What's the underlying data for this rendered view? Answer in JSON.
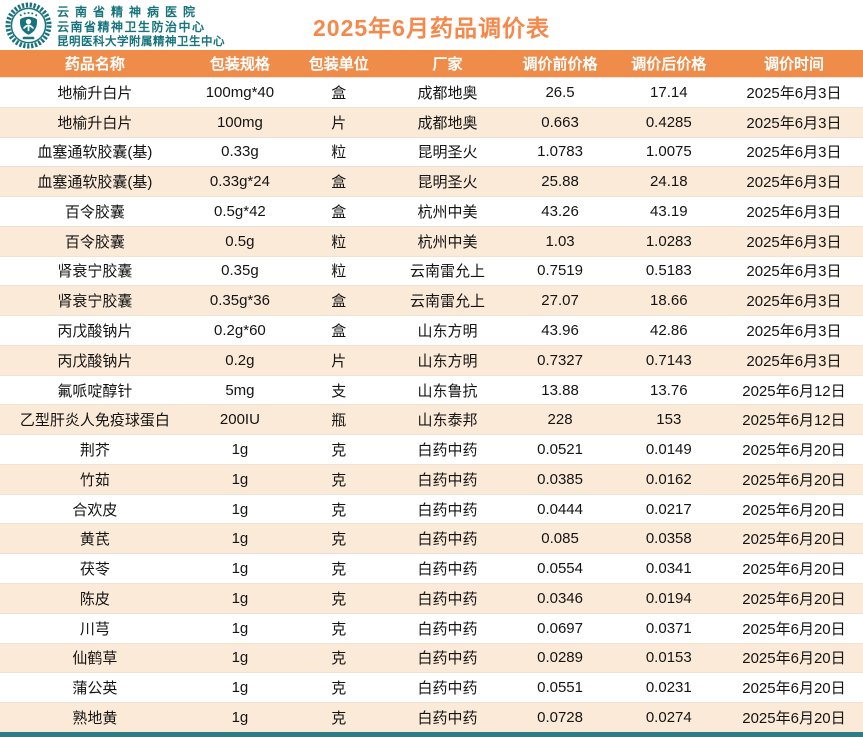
{
  "page": {
    "title": "2025年6月药品调价表"
  },
  "header": {
    "logo_icon": "hospital-emblem-icon",
    "org_lines": [
      "云南省精神病医院",
      "云南省精神卫生防治中心",
      "昆明医科大学附属精神卫生中心"
    ]
  },
  "colors": {
    "header_bar_orange": "#ef8c4a",
    "title_orange": "#f5884a",
    "org_teal": "#17747e",
    "row_alt_peach": "#fcead9",
    "row_border": "#f0e2d4",
    "footer_teal": "#2e7d86",
    "cell_text": "#141414"
  },
  "table": {
    "columns": [
      "药品名称",
      "包装规格",
      "包装单位",
      "厂家",
      "调价前价格",
      "调价后价格",
      "调价时间"
    ],
    "column_keys": [
      "drug-name",
      "pack-spec",
      "pack-unit",
      "manufacturer",
      "price-before",
      "price-after",
      "adjust-date"
    ],
    "rows": [
      [
        "地榆升白片",
        "100mg*40",
        "盒",
        "成都地奥",
        "26.5",
        "17.14",
        "2025年6月3日"
      ],
      [
        "地榆升白片",
        "100mg",
        "片",
        "成都地奥",
        "0.663",
        "0.4285",
        "2025年6月3日"
      ],
      [
        "血塞通软胶囊(基)",
        "0.33g",
        "粒",
        "昆明圣火",
        "1.0783",
        "1.0075",
        "2025年6月3日"
      ],
      [
        "血塞通软胶囊(基)",
        "0.33g*24",
        "盒",
        "昆明圣火",
        "25.88",
        "24.18",
        "2025年6月3日"
      ],
      [
        "百令胶囊",
        "0.5g*42",
        "盒",
        "杭州中美",
        "43.26",
        "43.19",
        "2025年6月3日"
      ],
      [
        "百令胶囊",
        "0.5g",
        "粒",
        "杭州中美",
        "1.03",
        "1.0283",
        "2025年6月3日"
      ],
      [
        "肾衰宁胶囊",
        "0.35g",
        "粒",
        "云南雷允上",
        "0.7519",
        "0.5183",
        "2025年6月3日"
      ],
      [
        "肾衰宁胶囊",
        "0.35g*36",
        "盒",
        "云南雷允上",
        "27.07",
        "18.66",
        "2025年6月3日"
      ],
      [
        "丙戊酸钠片",
        "0.2g*60",
        "盒",
        "山东方明",
        "43.96",
        "42.86",
        "2025年6月3日"
      ],
      [
        "丙戊酸钠片",
        "0.2g",
        "片",
        "山东方明",
        "0.7327",
        "0.7143",
        "2025年6月3日"
      ],
      [
        "氟哌啶醇针",
        "5mg",
        "支",
        "山东鲁抗",
        "13.88",
        "13.76",
        "2025年6月12日"
      ],
      [
        "乙型肝炎人免疫球蛋白",
        "200IU",
        "瓶",
        "山东泰邦",
        "228",
        "153",
        "2025年6月12日"
      ],
      [
        "荆芥",
        "1g",
        "克",
        "白药中药",
        "0.0521",
        "0.0149",
        "2025年6月20日"
      ],
      [
        "竹茹",
        "1g",
        "克",
        "白药中药",
        "0.0385",
        "0.0162",
        "2025年6月20日"
      ],
      [
        "合欢皮",
        "1g",
        "克",
        "白药中药",
        "0.0444",
        "0.0217",
        "2025年6月20日"
      ],
      [
        "黄芪",
        "1g",
        "克",
        "白药中药",
        "0.085",
        "0.0358",
        "2025年6月20日"
      ],
      [
        "茯苓",
        "1g",
        "克",
        "白药中药",
        "0.0554",
        "0.0341",
        "2025年6月20日"
      ],
      [
        "陈皮",
        "1g",
        "克",
        "白药中药",
        "0.0346",
        "0.0194",
        "2025年6月20日"
      ],
      [
        "川芎",
        "1g",
        "克",
        "白药中药",
        "0.0697",
        "0.0371",
        "2025年6月20日"
      ],
      [
        "仙鹤草",
        "1g",
        "克",
        "白药中药",
        "0.0289",
        "0.0153",
        "2025年6月20日"
      ],
      [
        "蒲公英",
        "1g",
        "克",
        "白药中药",
        "0.0551",
        "0.0231",
        "2025年6月20日"
      ],
      [
        "熟地黄",
        "1g",
        "克",
        "白药中药",
        "0.0728",
        "0.0274",
        "2025年6月20日"
      ]
    ]
  }
}
